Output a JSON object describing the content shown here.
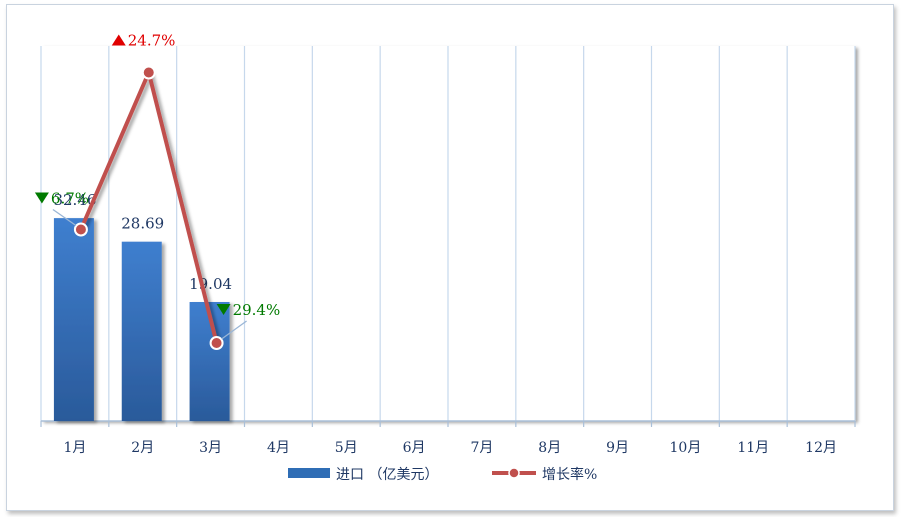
{
  "chart_data": {
    "type": "bar",
    "categories": [
      "1月",
      "2月",
      "3月",
      "4月",
      "5月",
      "6月",
      "7月",
      "8月",
      "9月",
      "10月",
      "11月",
      "12月"
    ],
    "series": [
      {
        "name": "进口（亿美元）",
        "type": "bar",
        "values": [
          32.46,
          28.69,
          19.04,
          null,
          null,
          null,
          null,
          null,
          null,
          null,
          null,
          null
        ],
        "color": "#2f6db5"
      },
      {
        "name": "增长率%",
        "type": "line",
        "values": [
          -6.7,
          24.7,
          -29.4,
          null,
          null,
          null,
          null,
          null,
          null,
          null,
          null,
          null
        ],
        "color": "#c0504d"
      }
    ],
    "data_labels": [
      "32.46",
      "28.69",
      "19.04"
    ],
    "rate_labels": [
      {
        "text": "6.7%",
        "direction": "down",
        "color": "#007a00"
      },
      {
        "text": "24.7%",
        "direction": "up",
        "color": "#e00000"
      },
      {
        "text": "29.4%",
        "direction": "down",
        "color": "#007a00"
      }
    ],
    "legend": {
      "position": "bottom",
      "entries": [
        "进口 （亿美元）",
        "增长率%"
      ]
    },
    "grid": "vertical",
    "bar_ylim": [
      0,
      60
    ],
    "rate_ylim": [
      -45,
      30
    ]
  }
}
